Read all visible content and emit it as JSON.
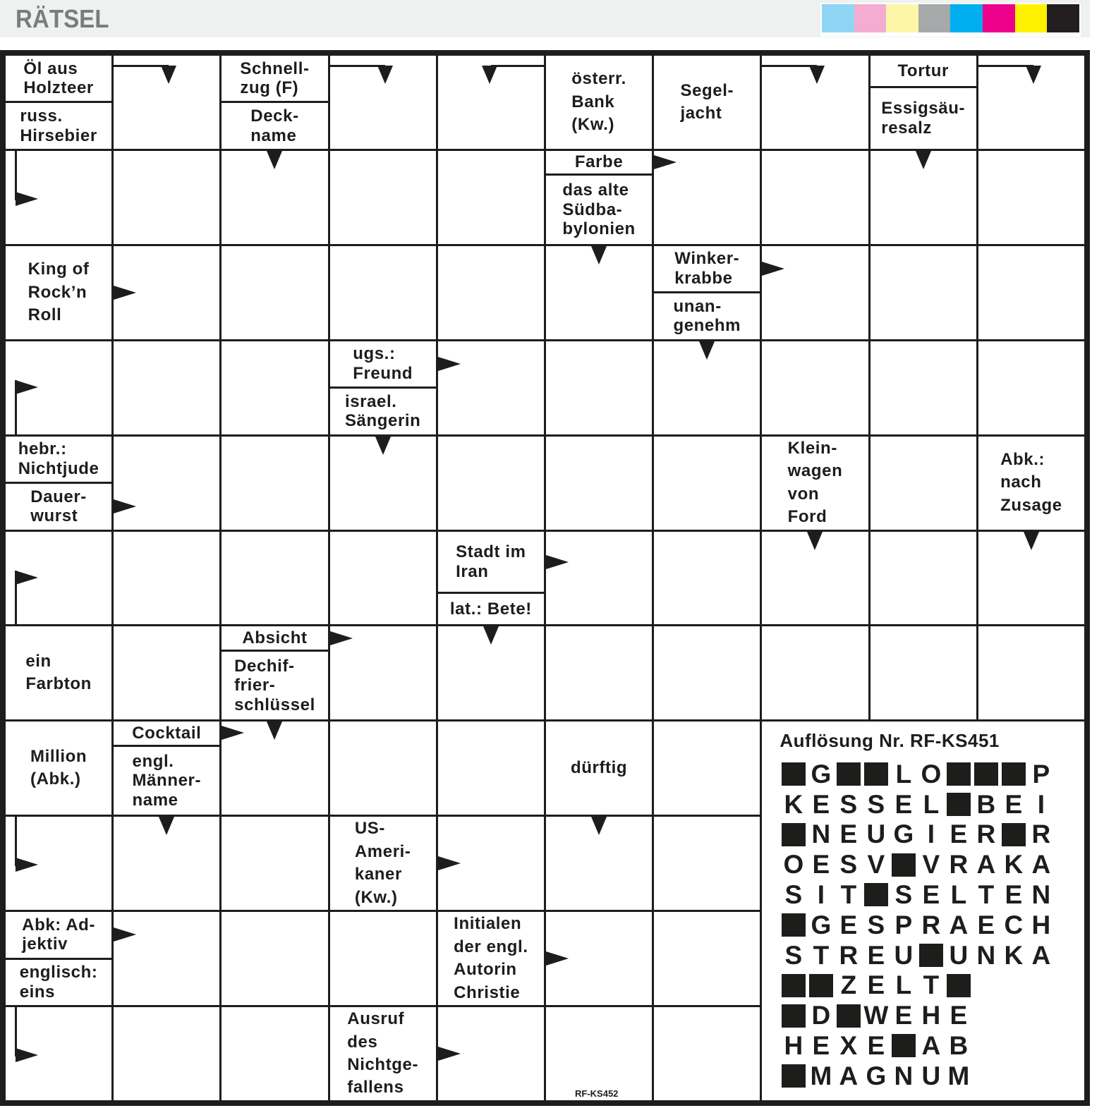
{
  "header": {
    "title": "RÄTSEL",
    "color_bar": [
      "#8fd6f5",
      "#f4acd0",
      "#fdf6a8",
      "#a7a8aa",
      "#00aeef",
      "#ec008c",
      "#fff200",
      "#231f20"
    ]
  },
  "grid": {
    "rows": [
      [
        {
          "clues": [
            {
              "text": "Öl aus\nHolzteer"
            },
            {
              "text": "russ.\nHirsebier"
            }
          ]
        },
        {
          "mark": "bent-down-from-left"
        },
        {
          "clues": [
            {
              "text": "Schnell-\nzug (F)"
            },
            {
              "text": "Deck-\nname",
              "arrow": "down"
            }
          ]
        },
        {
          "mark": "bent-down-from-left"
        },
        {
          "mark": "bent-down-from-right"
        },
        {
          "clues": [
            {
              "text": "österr.\nBank\n(Kw.)"
            }
          ]
        },
        {
          "clues": [
            {
              "text": "Segel-\njacht"
            }
          ]
        },
        {
          "mark": "bent-down-from-left"
        },
        {
          "clues": [
            {
              "text": "Tortur"
            },
            {
              "text": "Essigsäu-\nresalz",
              "arrow": "down"
            }
          ]
        },
        {
          "mark": "bent-down-from-left"
        }
      ],
      [
        {
          "mark": "bent-right-from-top"
        },
        {},
        {},
        {},
        {},
        {
          "clues": [
            {
              "text": "Farbe",
              "arrow": "right"
            },
            {
              "text": "das alte\nSüdba-\nbylonien",
              "arrow": "down"
            }
          ]
        },
        {},
        {},
        {},
        {}
      ],
      [
        {
          "clues": [
            {
              "text": "King of\nRock’n\nRoll",
              "arrow": "right"
            }
          ]
        },
        {},
        {},
        {},
        {},
        {},
        {
          "clues": [
            {
              "text": "Winker-\nkrabbe",
              "arrow": "right"
            },
            {
              "text": "unan-\ngenehm",
              "arrow": "down"
            }
          ]
        },
        {},
        {},
        {}
      ],
      [
        {
          "mark": "bent-right-from-bottom"
        },
        {},
        {},
        {
          "clues": [
            {
              "text": "ugs.:\nFreund",
              "arrow": "right"
            },
            {
              "text": "israel.\nSängerin",
              "arrow": "down"
            }
          ]
        },
        {},
        {},
        {},
        {},
        {},
        {}
      ],
      [
        {
          "clues": [
            {
              "text": "hebr.:\nNichtjude"
            },
            {
              "text": "Dauer-\nwurst",
              "arrow": "right"
            }
          ]
        },
        {},
        {},
        {},
        {},
        {},
        {},
        {
          "clues": [
            {
              "text": "Klein-\nwagen\nvon\nFord",
              "arrow": "down"
            }
          ]
        },
        {},
        {
          "clues": [
            {
              "text": "Abk.:\nnach\nZusage",
              "arrow": "down"
            }
          ]
        }
      ],
      [
        {
          "mark": "bent-right-from-bottom"
        },
        {},
        {},
        {},
        {
          "clues": [
            {
              "text": "Stadt im\nIran",
              "arrow": "right"
            },
            {
              "text": "lat.: Bete!",
              "arrow": "down"
            }
          ]
        },
        {},
        {},
        {},
        {},
        {}
      ],
      [
        {
          "clues": [
            {
              "text": "ein\nFarbton"
            }
          ]
        },
        {},
        {
          "clues": [
            {
              "text": "Absicht",
              "arrow": "right"
            },
            {
              "text": "Dechif-\nfrier-\nschlüssel",
              "arrow": "down"
            }
          ]
        },
        {},
        {},
        {},
        {},
        {},
        {},
        {}
      ],
      [
        {
          "clues": [
            {
              "text": "Million\n(Abk.)"
            }
          ]
        },
        {
          "clues": [
            {
              "text": "Cocktail",
              "arrow": "right"
            },
            {
              "text": "engl.\nMänner-\nname",
              "arrow": "down"
            }
          ]
        },
        {},
        {},
        {},
        {
          "clues": [
            {
              "text": "dürftig",
              "arrow": "down"
            }
          ]
        },
        {},
        {
          "solution_area": true
        },
        {
          "solution_area": true
        },
        {
          "solution_area": true
        }
      ],
      [
        {
          "mark": "bent-right-from-top"
        },
        {},
        {},
        {
          "clues": [
            {
              "text": "US-\nAmeri-\nkaner\n(Kw.)",
              "arrow": "right"
            }
          ]
        },
        {},
        {},
        {},
        {
          "solution_area": true
        },
        {
          "solution_area": true
        },
        {
          "solution_area": true
        }
      ],
      [
        {
          "clues": [
            {
              "text": "Abk: Ad-\njektiv",
              "arrow": "right"
            },
            {
              "text": "englisch:\neins"
            }
          ]
        },
        {},
        {},
        {},
        {
          "clues": [
            {
              "text": "Initialen\nder engl.\nAutorin\nChristie",
              "arrow": "right"
            }
          ]
        },
        {},
        {},
        {
          "solution_area": true
        },
        {
          "solution_area": true
        },
        {
          "solution_area": true
        }
      ],
      [
        {
          "mark": "bent-right-from-top"
        },
        {},
        {},
        {
          "clues": [
            {
              "text": "Ausruf\ndes\nNichtge-\nfallens",
              "arrow": "right"
            }
          ]
        },
        {},
        {},
        {},
        {
          "solution_area": true
        },
        {
          "solution_area": true
        },
        {
          "solution_area": true
        }
      ]
    ]
  },
  "solution": {
    "title": "Auflösung Nr. RF-KS451",
    "rows": [
      "■G■■LO■■■P",
      "KESSEL■BEI",
      "■NEUGIER■R",
      "OESV■VRAKA",
      "SIT■SELTEN",
      "■GESPRAECH",
      "STREU■UNKA",
      "■■ZELT■",
      "■D■WEHE",
      "HEXE■AB",
      "■MAGNUM"
    ]
  },
  "puzzle_code": "RF-KS452"
}
